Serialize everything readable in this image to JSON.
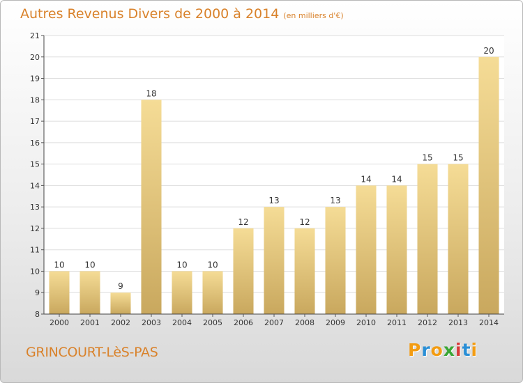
{
  "header": {
    "title": "Autres Revenus Divers de 2000 à 2014",
    "subtitle": "(en milliers d'€)"
  },
  "footer": {
    "place": "GRINCOURT-LèS-PAS",
    "logo_letters": [
      "P",
      "r",
      "o",
      "x",
      "i",
      "t",
      "i"
    ],
    "logo_colors": [
      "#f39c12",
      "#2a8fd6",
      "#f39c12",
      "#3aa635",
      "#d93a3a",
      "#2a8fd6",
      "#f39c12"
    ]
  },
  "chart_data": {
    "type": "bar",
    "categories": [
      "2000",
      "2001",
      "2002",
      "2003",
      "2004",
      "2005",
      "2006",
      "2007",
      "2008",
      "2009",
      "2010",
      "2011",
      "2012",
      "2013",
      "2014"
    ],
    "values": [
      10,
      10,
      9,
      18,
      10,
      10,
      12,
      13,
      12,
      13,
      14,
      14,
      15,
      15,
      20
    ],
    "title": "Autres Revenus Divers de 2000 à 2014",
    "subtitle": "(en milliers d'€)",
    "xlabel": "",
    "ylabel": "",
    "ylim": [
      8,
      21
    ],
    "yticks": [
      8,
      9,
      10,
      11,
      12,
      13,
      14,
      15,
      16,
      17,
      18,
      19,
      20,
      21
    ],
    "grid": "horizontal",
    "legend": "none",
    "bar_color_top": "#f5dc96",
    "bar_color_bottom": "#c9a85e"
  }
}
